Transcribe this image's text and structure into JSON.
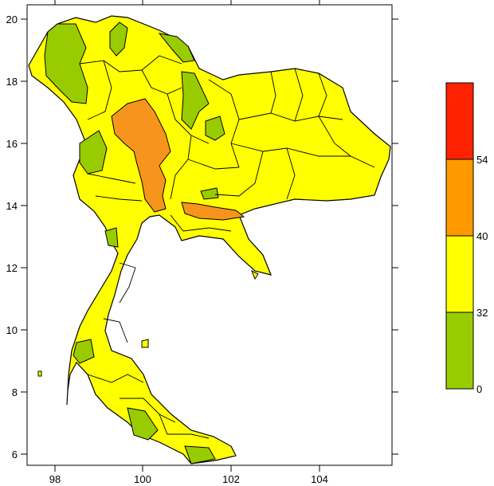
{
  "map": {
    "x_ticks": [
      "98",
      "100",
      "102",
      "104"
    ],
    "y_ticks": [
      "6",
      "8",
      "10",
      "12",
      "14",
      "16",
      "18",
      "20"
    ]
  },
  "legend": {
    "bins": [
      {
        "range": "0-32",
        "color": "#99cc00"
      },
      {
        "range": "32-40",
        "color": "#ffff00"
      },
      {
        "range": "40-54",
        "color": "#ff9900"
      },
      {
        "range": "54+",
        "color": "#ff2200"
      }
    ],
    "labels": [
      "0",
      "32",
      "40",
      "54"
    ]
  },
  "colors": {
    "green": "#99cc00",
    "yellow": "#ffff00",
    "orange": "#f7941d",
    "red": "#ff2200",
    "boundary": "#000000"
  }
}
